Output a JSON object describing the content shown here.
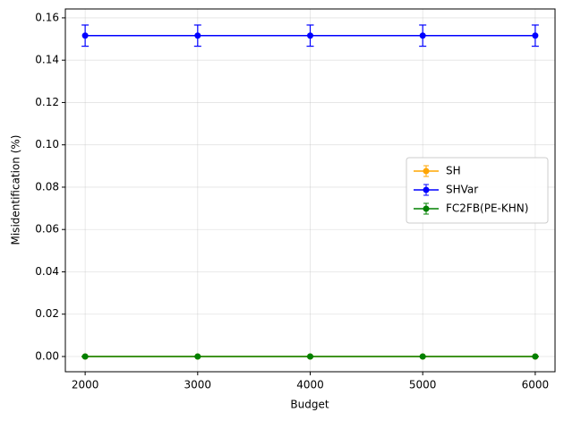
{
  "chart_data": {
    "type": "line",
    "x_label": "Budget",
    "y_label": "Misidentification (%)",
    "x": [
      2000,
      3000,
      4000,
      5000,
      6000
    ],
    "series": [
      {
        "name": "SH",
        "color": "#ffa500",
        "values": [
          0,
          0,
          0,
          0,
          0
        ],
        "errors": [
          0,
          0,
          0,
          0,
          0
        ]
      },
      {
        "name": "SHVar",
        "color": "#0000ff",
        "values": [
          0.1516,
          0.1516,
          0.1516,
          0.1516,
          0.1516
        ],
        "errors": [
          0.005,
          0.005,
          0.005,
          0.005,
          0.005
        ]
      },
      {
        "name": "FC2FB(PE-KHN)",
        "color": "#008000",
        "values": [
          0,
          0,
          0,
          0,
          0
        ],
        "errors": [
          0,
          0,
          0,
          0,
          0
        ]
      }
    ],
    "xlim": [
      1824,
      6176
    ],
    "ylim": [
      -0.0072,
      0.1642
    ],
    "xticks": [
      2000,
      3000,
      4000,
      5000,
      6000
    ],
    "yticks": [
      {
        "value": 0,
        "label": "0.00"
      },
      {
        "value": 0.02,
        "label": "0.02"
      },
      {
        "value": 0.04,
        "label": "0.04"
      },
      {
        "value": 0.06,
        "label": "0.06"
      },
      {
        "value": 0.08,
        "label": "0.08"
      },
      {
        "value": 0.1,
        "label": "0.10"
      },
      {
        "value": 0.12,
        "label": "0.12"
      },
      {
        "value": 0.14,
        "label": "0.14"
      },
      {
        "value": 0.16,
        "label": "0.16"
      }
    ],
    "grid": true,
    "legend_position": "center right"
  }
}
